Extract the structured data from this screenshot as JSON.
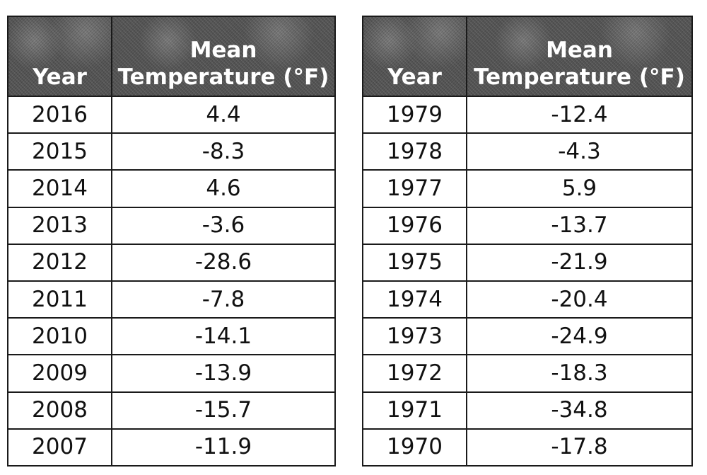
{
  "headers": {
    "year": "Year",
    "mean": "Mean",
    "temperature": "Temperature (°F)"
  },
  "left_table": {
    "rows": [
      {
        "year": "2016",
        "temp": "4.4"
      },
      {
        "year": "2015",
        "temp": "-8.3"
      },
      {
        "year": "2014",
        "temp": "4.6"
      },
      {
        "year": "2013",
        "temp": "-3.6"
      },
      {
        "year": "2012",
        "temp": "-28.6"
      },
      {
        "year": "2011",
        "temp": "-7.8"
      },
      {
        "year": "2010",
        "temp": "-14.1"
      },
      {
        "year": "2009",
        "temp": "-13.9"
      },
      {
        "year": "2008",
        "temp": "-15.7"
      },
      {
        "year": "2007",
        "temp": "-11.9"
      }
    ]
  },
  "right_table": {
    "rows": [
      {
        "year": "1979",
        "temp": "-12.4"
      },
      {
        "year": "1978",
        "temp": "-4.3"
      },
      {
        "year": "1977",
        "temp": "5.9"
      },
      {
        "year": "1976",
        "temp": "-13.7"
      },
      {
        "year": "1975",
        "temp": "-21.9"
      },
      {
        "year": "1974",
        "temp": "-20.4"
      },
      {
        "year": "1973",
        "temp": "-24.9"
      },
      {
        "year": "1972",
        "temp": "-18.3"
      },
      {
        "year": "1971",
        "temp": "-34.8"
      },
      {
        "year": "1970",
        "temp": "-17.8"
      }
    ]
  },
  "colors": {
    "header_background": "#555555",
    "header_text": "#ffffff",
    "border": "#1a1a1a"
  }
}
